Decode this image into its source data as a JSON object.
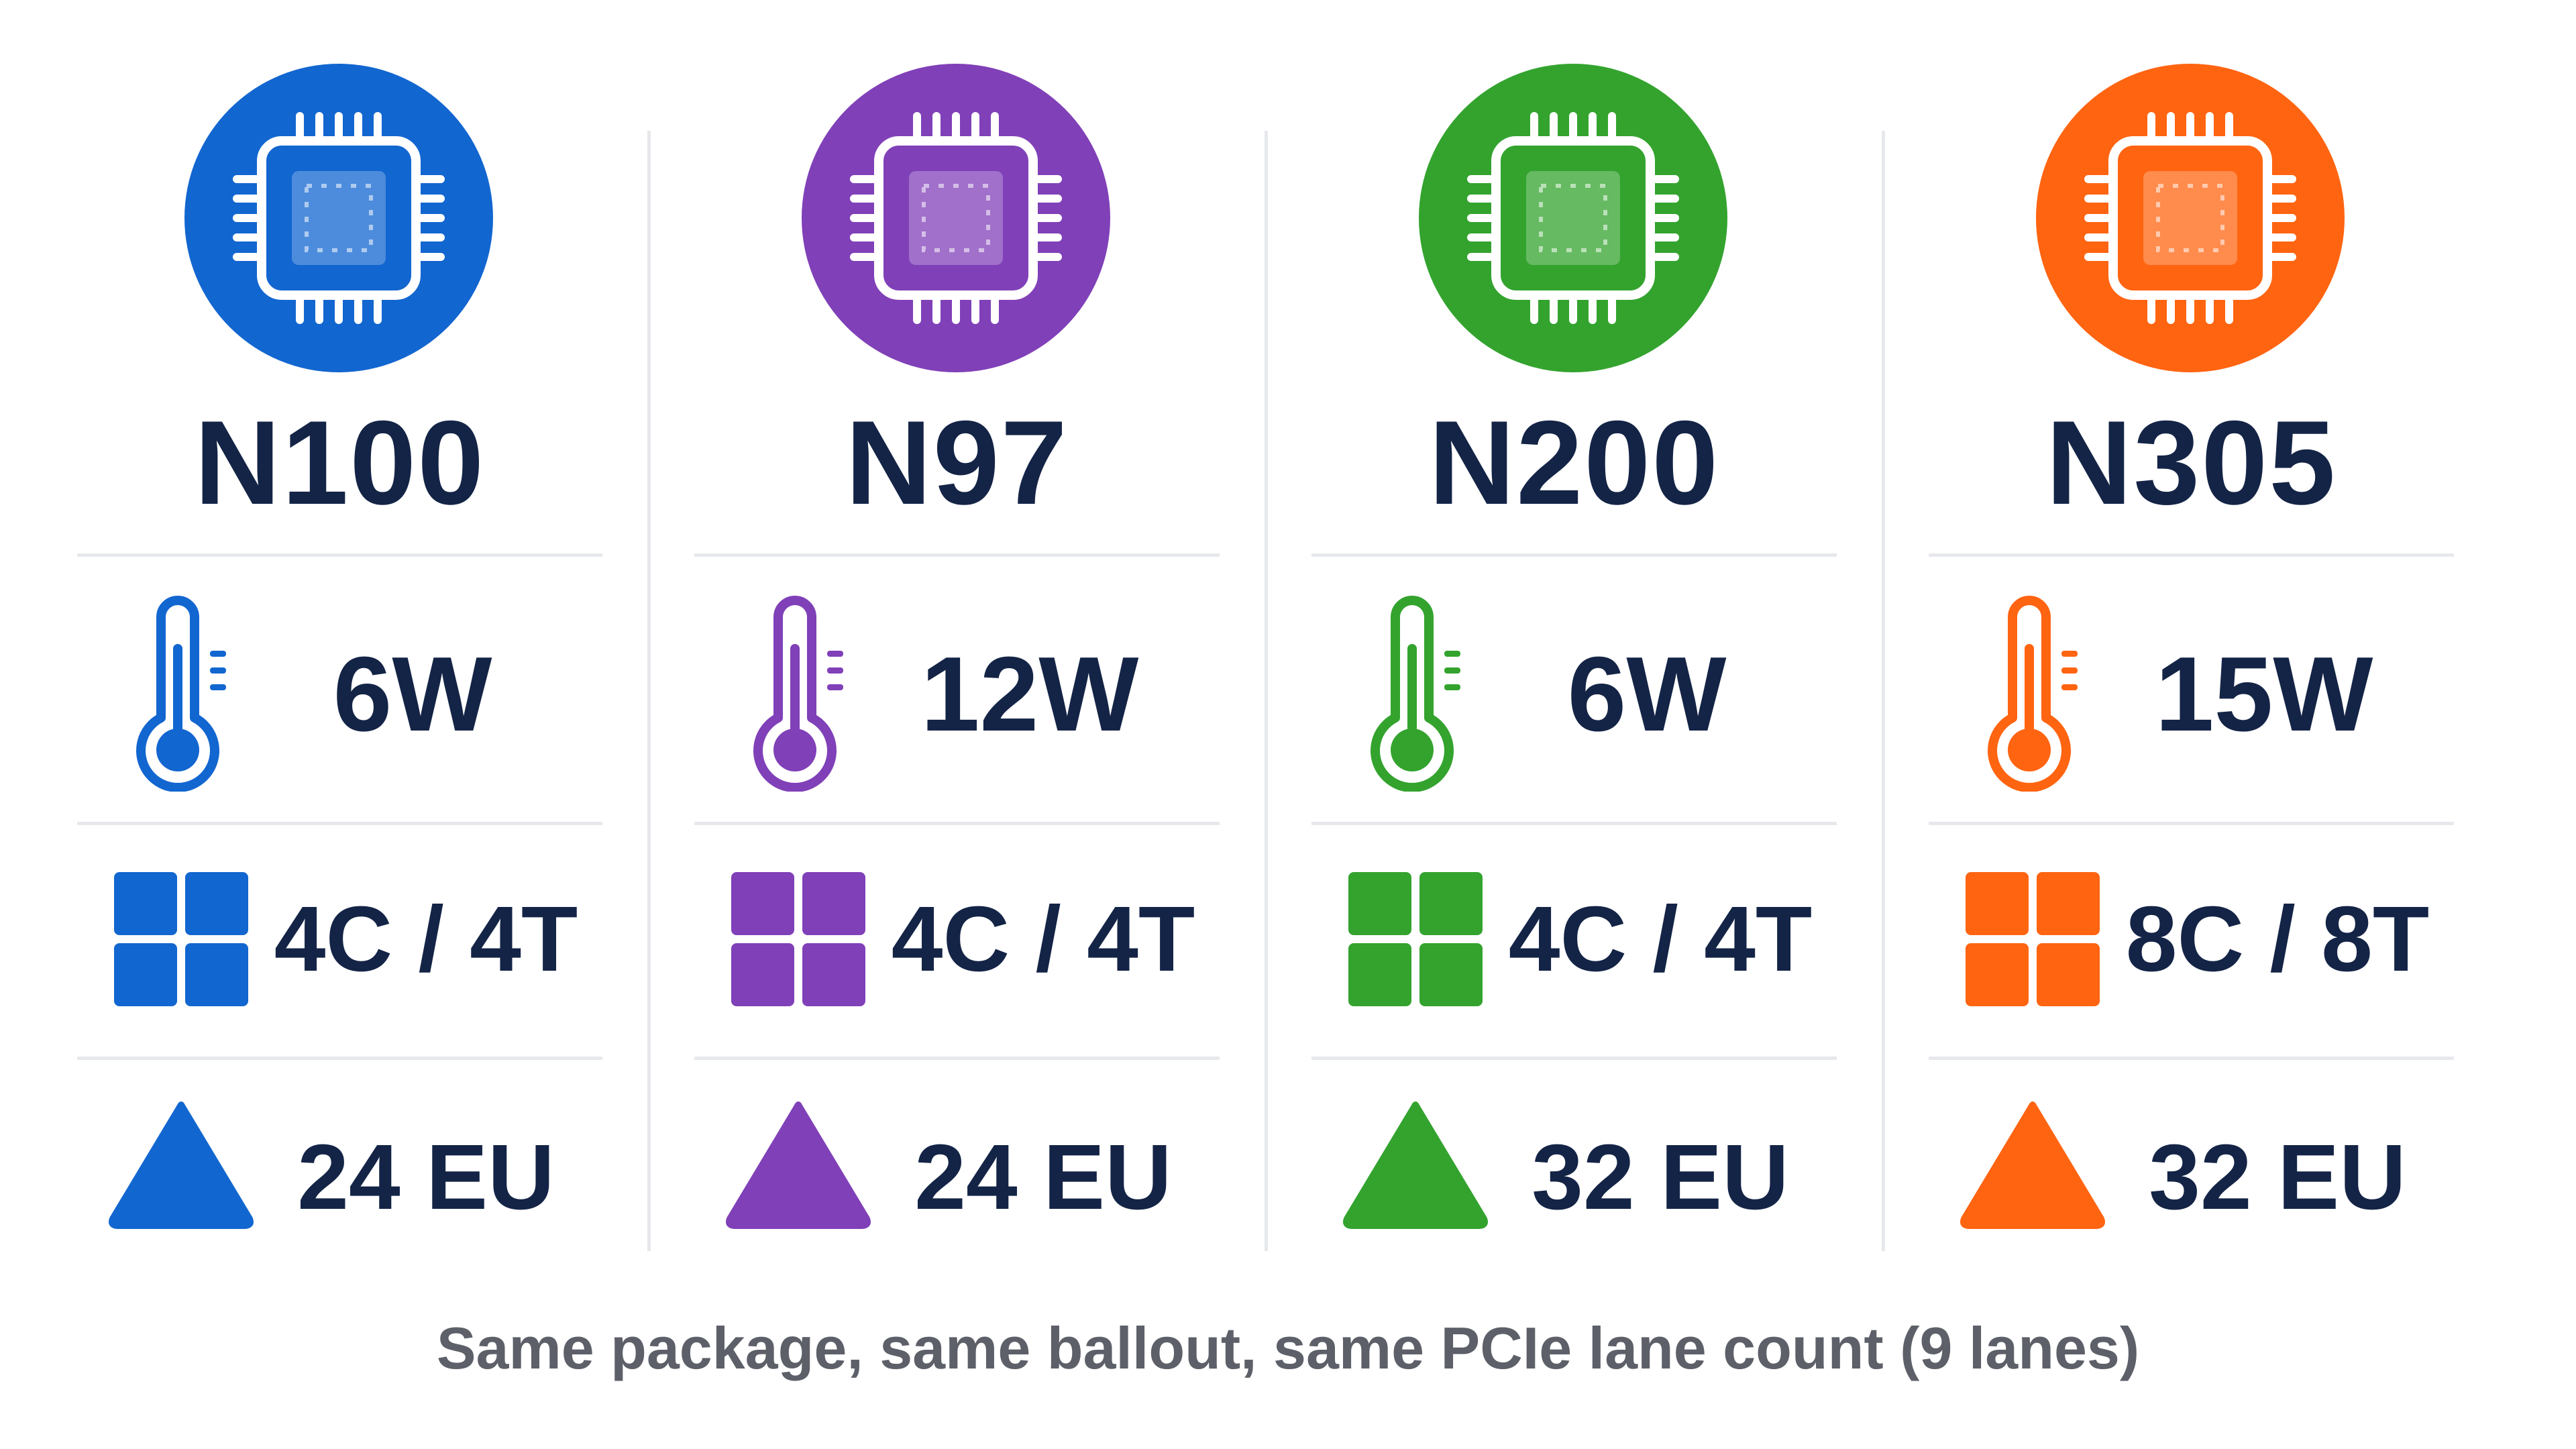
{
  "processors": [
    {
      "name": "N100",
      "tdp": "6W",
      "cores": "4C / 4T",
      "gpu": "24 EU",
      "color": "#1266d0",
      "icons": {
        "chip": "cpu-chip-icon",
        "tdp": "thermometer-icon",
        "cores": "cores-grid-icon",
        "gpu": "triangle-icon"
      }
    },
    {
      "name": "N97",
      "tdp": "12W",
      "cores": "4C / 4T",
      "gpu": "24 EU",
      "color": "#8040b8",
      "icons": {
        "chip": "cpu-chip-icon",
        "tdp": "thermometer-icon",
        "cores": "cores-grid-icon",
        "gpu": "triangle-icon"
      }
    },
    {
      "name": "N200",
      "tdp": "6W",
      "cores": "4C / 4T",
      "gpu": "32 EU",
      "color": "#33a32e",
      "icons": {
        "chip": "cpu-chip-icon",
        "tdp": "thermometer-icon",
        "cores": "cores-grid-icon",
        "gpu": "triangle-icon"
      }
    },
    {
      "name": "N305",
      "tdp": "15W",
      "cores": "8C / 8T",
      "gpu": "32 EU",
      "color": "#ff6411",
      "icons": {
        "chip": "cpu-chip-icon",
        "tdp": "thermometer-icon",
        "cores": "cores-grid-icon",
        "gpu": "triangle-icon"
      }
    }
  ],
  "footer": "Same package, same ballout, same PCIe lane count (9 lanes)",
  "colors": {
    "text": "#142446",
    "footer_text": "#5d6068",
    "divider": "#e6e8ec"
  }
}
